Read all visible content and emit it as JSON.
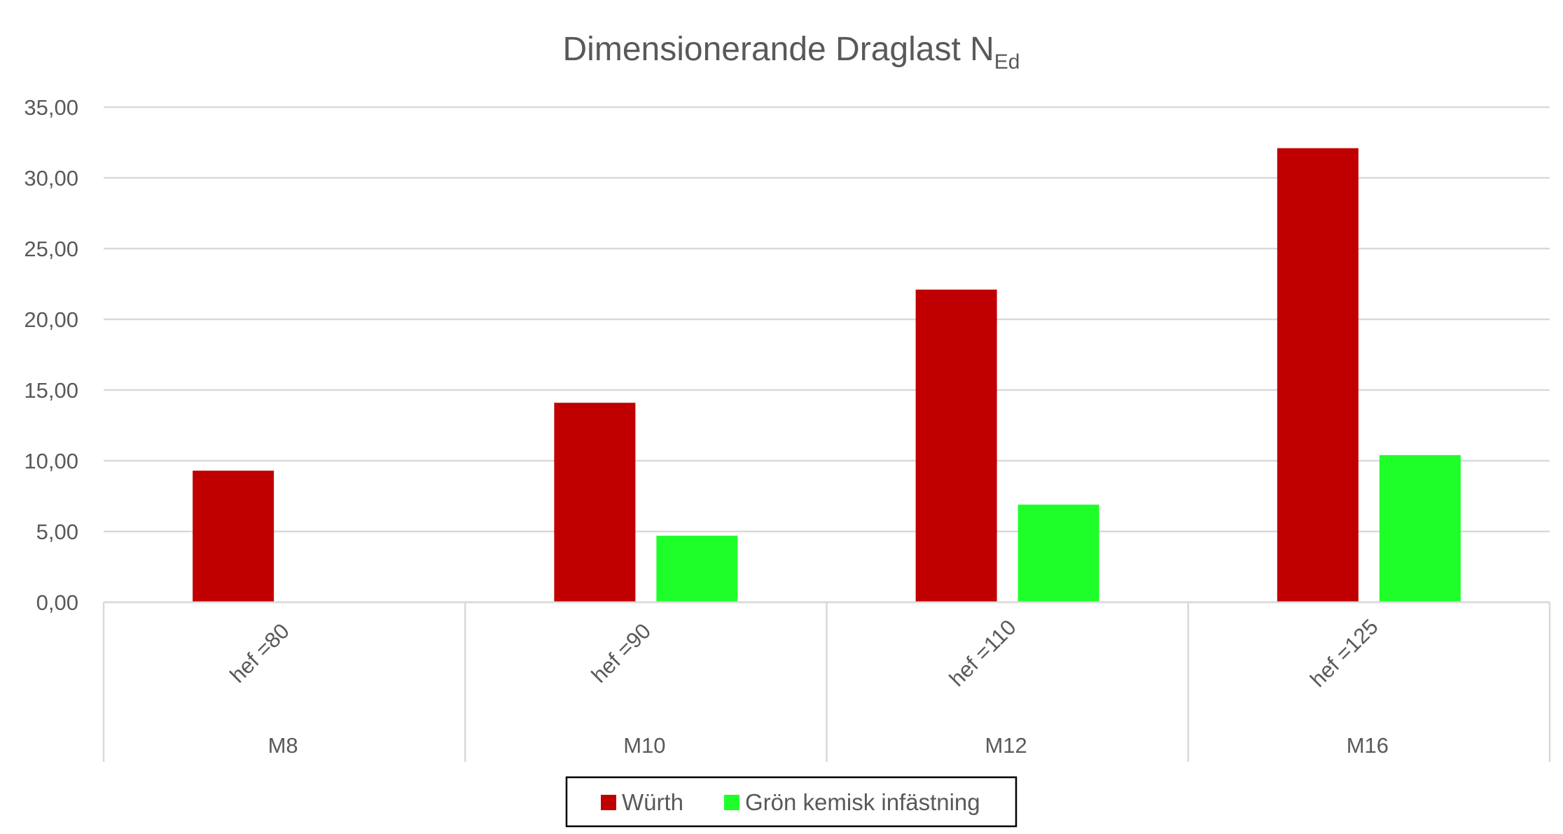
{
  "chart_data": {
    "type": "bar",
    "title": "Dimensionerande Draglast N",
    "title_subscript": "Ed",
    "xlabel": "",
    "ylabel": "",
    "ylim": [
      0,
      35
    ],
    "y_ticks": [
      "0,00",
      "5,00",
      "10,00",
      "15,00",
      "20,00",
      "25,00",
      "30,00",
      "35,00"
    ],
    "y_tick_values": [
      0,
      5,
      10,
      15,
      20,
      25,
      30,
      35
    ],
    "grid": true,
    "legend_position": "bottom",
    "categories": [
      "M8",
      "M10",
      "M12",
      "M16"
    ],
    "sub_categories": [
      "hef =80",
      "hef =90",
      "hef =110",
      "hef =125"
    ],
    "series": [
      {
        "name": "Würth",
        "color": "#C00000",
        "values": [
          9.3,
          14.1,
          22.1,
          32.1
        ]
      },
      {
        "name": "Grön kemisk infästning",
        "color": "#1EFF2A",
        "values": [
          null,
          4.7,
          6.9,
          10.4
        ]
      }
    ]
  },
  "colors": {
    "grid": "#D9D9D9",
    "text": "#595959",
    "legend_border": "#000000"
  }
}
